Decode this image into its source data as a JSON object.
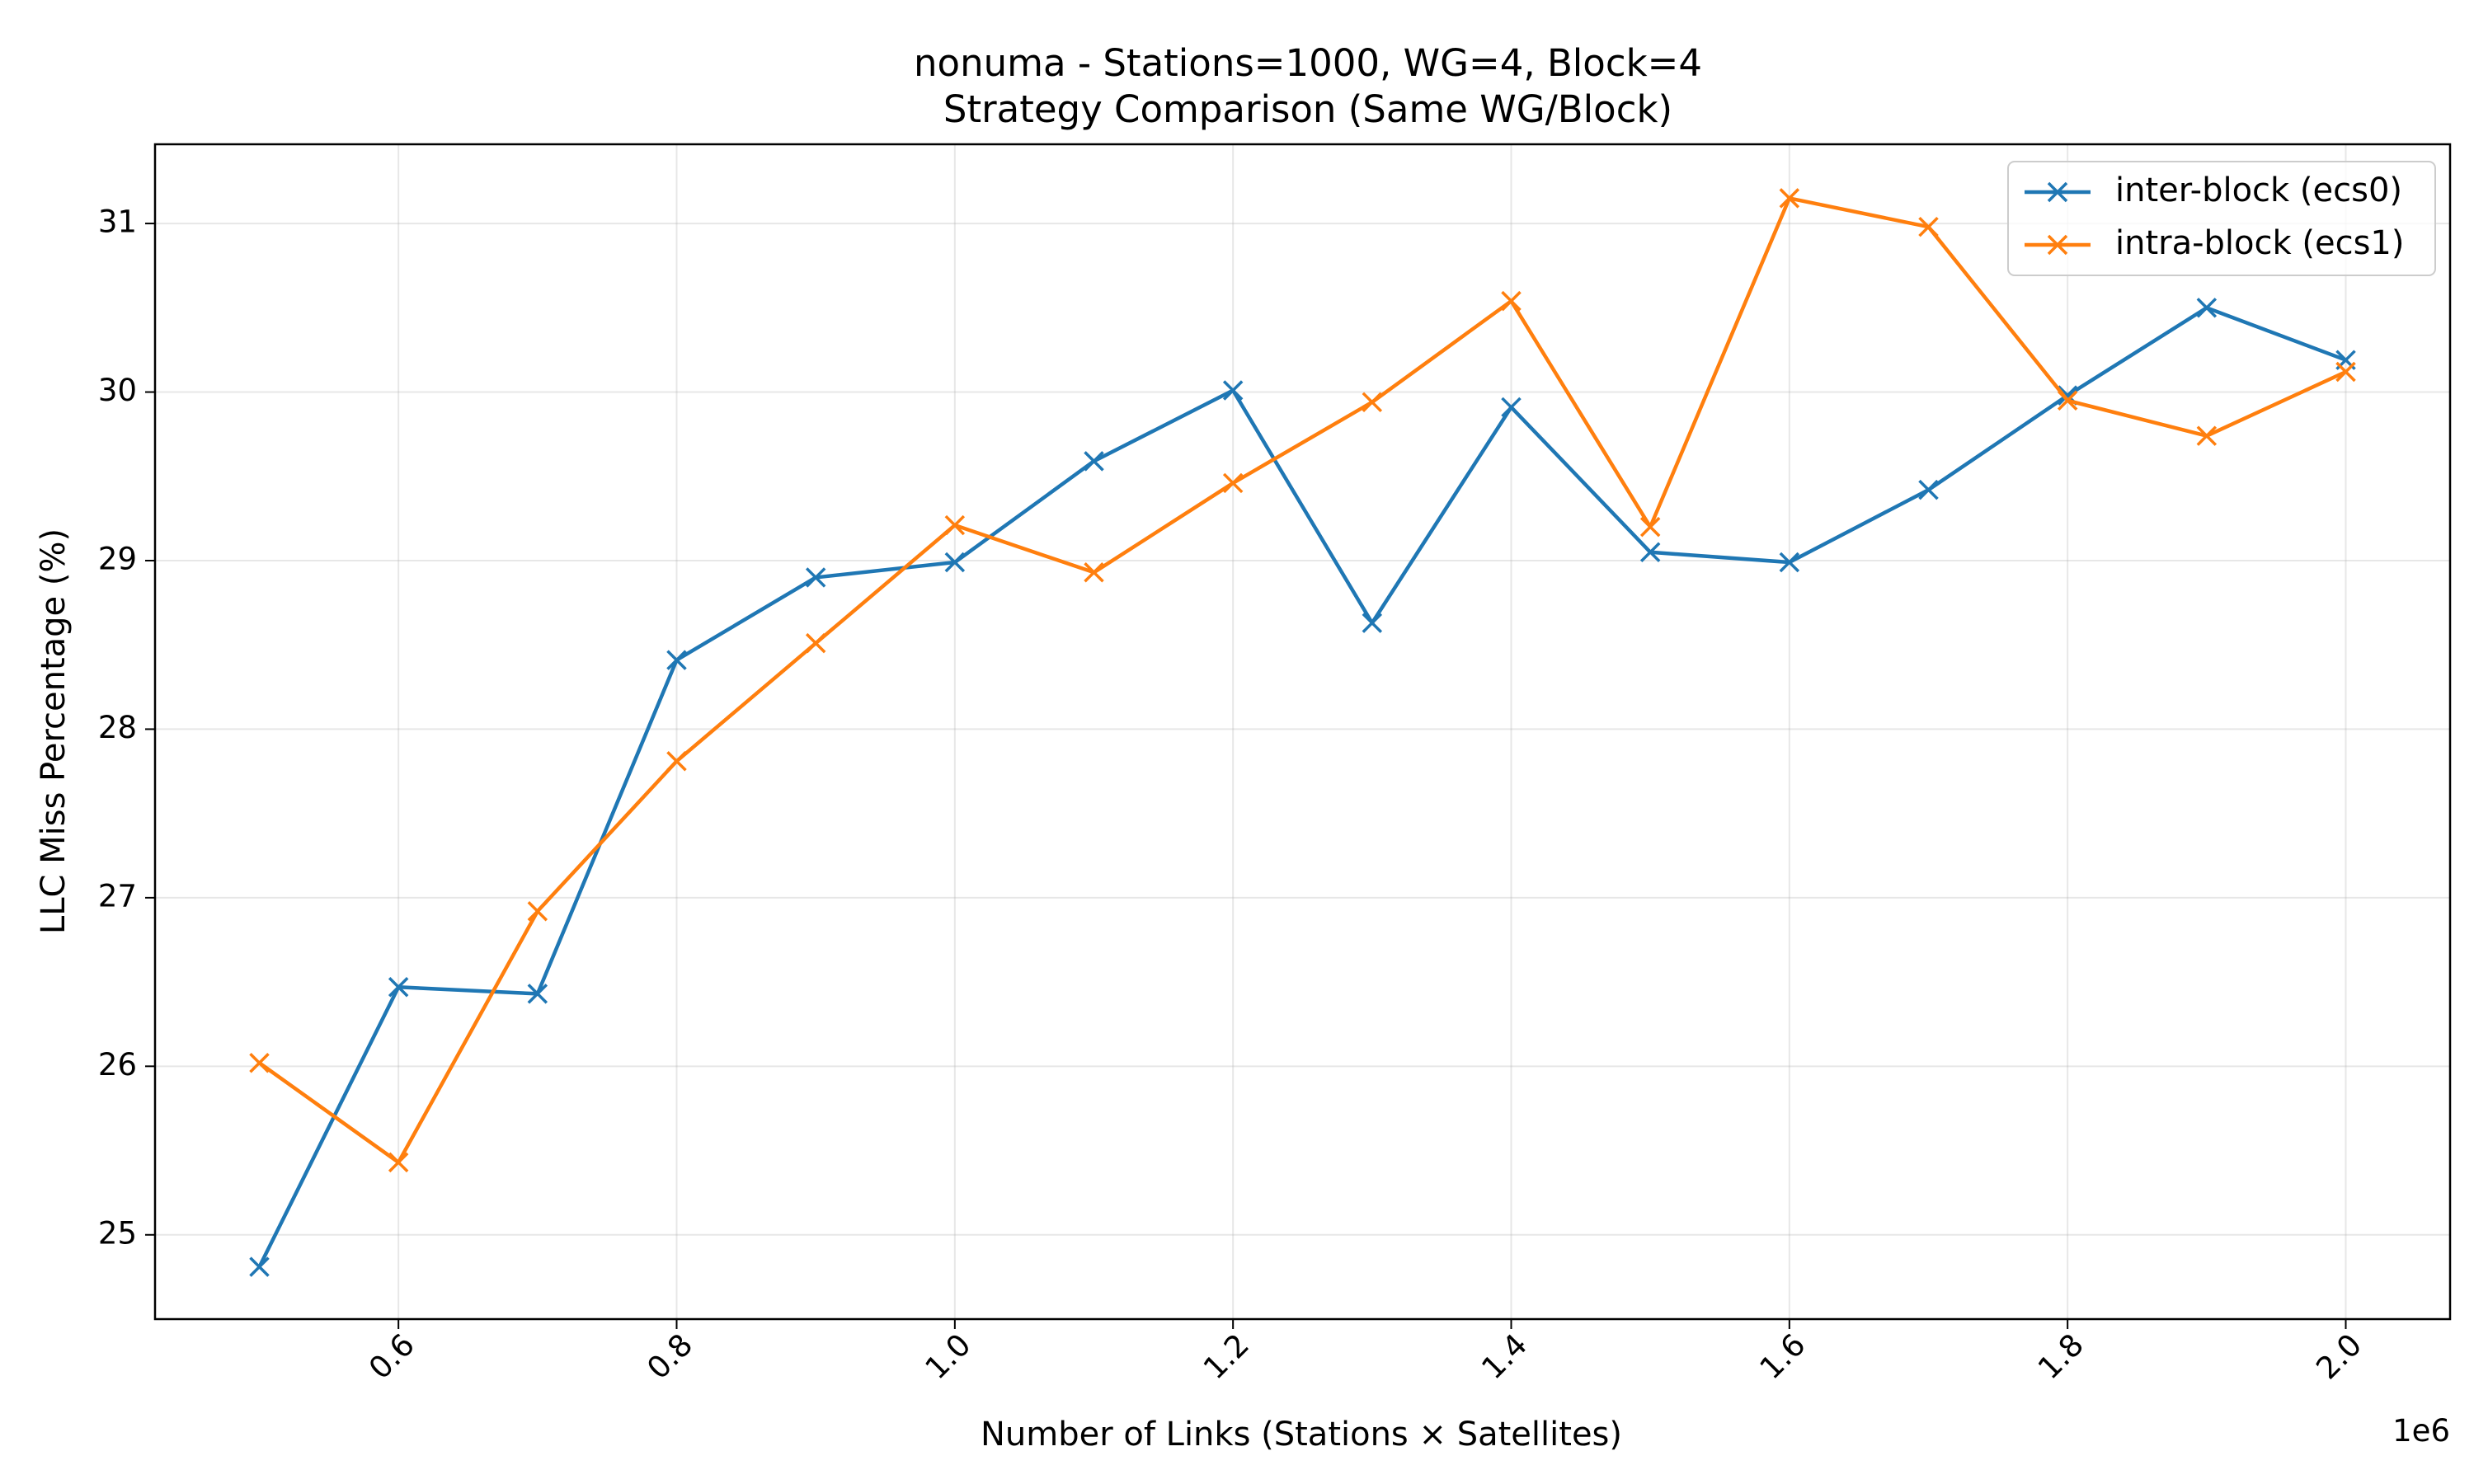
{
  "chart_data": {
    "type": "line",
    "title_line1": "nonuma - Stations=1000, WG=4, Block=4",
    "title_line2": "Strategy Comparison (Same WG/Block)",
    "xlabel": "Number of Links (Stations × Satellites)",
    "ylabel": "LLC Miss Percentage (%)",
    "x_offset_label": "1e6",
    "x": [
      500000,
      600000,
      700000,
      800000,
      900000,
      1000000,
      1100000,
      1200000,
      1300000,
      1400000,
      1500000,
      1600000,
      1700000,
      1800000,
      1900000,
      2000000
    ],
    "xlim": [
      425000,
      2075000
    ],
    "ylim": [
      24.5,
      31.47
    ],
    "xticks": [
      {
        "value": 600000,
        "label": "0.6"
      },
      {
        "value": 800000,
        "label": "0.8"
      },
      {
        "value": 1000000,
        "label": "1.0"
      },
      {
        "value": 1200000,
        "label": "1.2"
      },
      {
        "value": 1400000,
        "label": "1.4"
      },
      {
        "value": 1600000,
        "label": "1.6"
      },
      {
        "value": 1800000,
        "label": "1.8"
      },
      {
        "value": 2000000,
        "label": "2.0"
      }
    ],
    "yticks": [
      {
        "value": 25,
        "label": "25"
      },
      {
        "value": 26,
        "label": "26"
      },
      {
        "value": 27,
        "label": "27"
      },
      {
        "value": 28,
        "label": "28"
      },
      {
        "value": 29,
        "label": "29"
      },
      {
        "value": 30,
        "label": "30"
      },
      {
        "value": 31,
        "label": "31"
      }
    ],
    "grid": true,
    "legend_position": "top-right",
    "marker": "x",
    "series": [
      {
        "name": "inter-block (ecs0)",
        "color": "#1f77b4",
        "values": [
          24.81,
          26.47,
          26.43,
          28.41,
          28.9,
          28.99,
          29.59,
          30.01,
          28.63,
          29.91,
          29.05,
          28.99,
          29.42,
          29.98,
          30.5,
          30.19
        ]
      },
      {
        "name": "intra-block (ecs1)",
        "color": "#ff7f0e",
        "values": [
          26.02,
          25.43,
          26.92,
          27.81,
          28.51,
          29.21,
          28.93,
          29.46,
          29.94,
          30.54,
          29.2,
          31.15,
          30.98,
          29.95,
          29.74,
          30.12
        ]
      }
    ]
  }
}
